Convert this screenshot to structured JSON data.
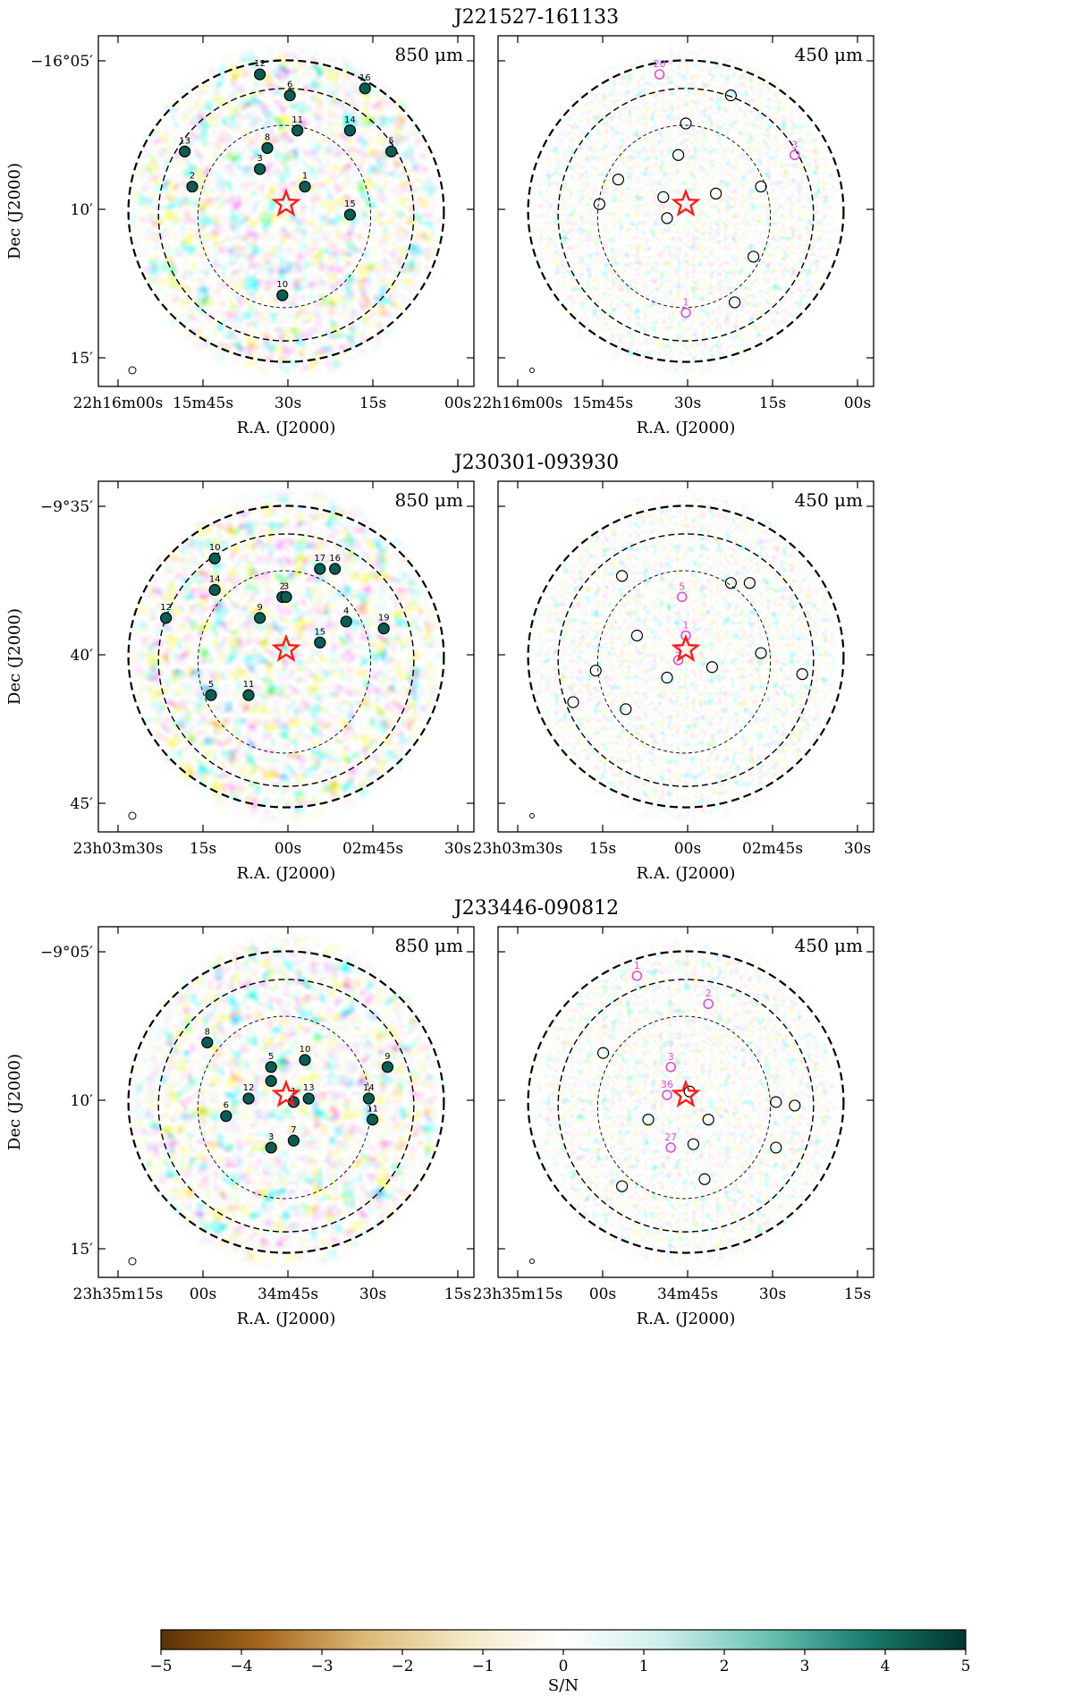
{
  "colorbar": {
    "label": "S/N",
    "ticks": [
      "−5",
      "−4",
      "−3",
      "−2",
      "−1",
      "0",
      "1",
      "2",
      "3",
      "4",
      "5"
    ],
    "colors": [
      "#5a3104",
      "#a6661d",
      "#dcb774",
      "#f3e7c4",
      "#ffffff",
      "#cdeeea",
      "#6cc3b6",
      "#1a7e6e",
      "#02362f"
    ]
  },
  "fields": [
    {
      "title": "J221527-161133",
      "ra_ticks": [
        "22h16m00s",
        "15m45s",
        "30s",
        "15s",
        "00s"
      ],
      "dec_ticks": [
        "−16°05′",
        "10′",
        "15′"
      ],
      "xlabel": "R.A. (J2000)",
      "ylabel": "Dec (J2000)",
      "bands": [
        "850 μm",
        "450 μm"
      ],
      "sources_850": [
        "1",
        "2",
        "3",
        "5",
        "6",
        "8",
        "10",
        "11",
        "12",
        "13",
        "14",
        "15",
        "16"
      ],
      "sources_450_magenta": [
        "20",
        "1",
        "3"
      ]
    },
    {
      "title": "J230301-093930",
      "ra_ticks": [
        "23h03m30s",
        "15s",
        "00s",
        "02m45s",
        "30s"
      ],
      "dec_ticks": [
        "−9°35′",
        "40′",
        "45′"
      ],
      "xlabel": "R.A. (J2000)",
      "ylabel": "Dec (J2000)",
      "bands": [
        "850 μm",
        "450 μm"
      ],
      "sources_850": [
        "2",
        "3",
        "4",
        "5",
        "9",
        "10",
        "11",
        "12",
        "14",
        "15",
        "16",
        "17",
        "19"
      ],
      "sources_450_magenta": [
        "5",
        "1",
        "3"
      ]
    },
    {
      "title": "J233446-090812",
      "ra_ticks": [
        "23h35m15s",
        "00s",
        "34m45s",
        "30s",
        "15s"
      ],
      "dec_ticks": [
        "−9°05′",
        "10′",
        "15′"
      ],
      "xlabel": "R.A. (J2000)",
      "ylabel": "Dec (J2000)",
      "bands": [
        "850 μm",
        "450 μm"
      ],
      "sources_850": [
        "1",
        "3",
        "4",
        "5",
        "6",
        "7",
        "8",
        "9",
        "10",
        "11",
        "12",
        "13",
        "14"
      ],
      "sources_450_magenta": [
        "1",
        "2",
        "3",
        "36",
        "27"
      ]
    }
  ]
}
